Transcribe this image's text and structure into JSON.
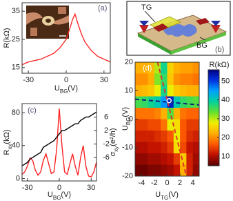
{
  "diagram": {
    "top_gate": "TG",
    "back_gate": "BG",
    "panel_label": "(b)"
  },
  "chart_data": [
    {
      "type": "line",
      "panel_label": "(a)",
      "x_label": {
        "main": "U",
        "sub": "BG",
        "unit": "(V)"
      },
      "y_label": {
        "main": "R",
        "sub": "",
        "unit": "(kΩ)"
      },
      "x": [
        -35,
        -30,
        -25,
        -20,
        -15,
        -10,
        -5,
        0,
        3,
        5,
        7,
        9,
        12,
        15,
        20,
        25,
        30,
        35
      ],
      "series": [
        {
          "color": "#ff2a2a",
          "axis": "y",
          "values": [
            16,
            17,
            17.5,
            18,
            19,
            20,
            22,
            25,
            29,
            32,
            34,
            31,
            27,
            24,
            21,
            19,
            18,
            17
          ]
        }
      ],
      "xlim": [
        -35,
        35
      ],
      "xticks": [
        -30,
        0,
        30
      ],
      "ylim": [
        13,
        38
      ],
      "yticks": [
        15,
        25,
        35
      ]
    },
    {
      "type": "line",
      "panel_label": "(c)",
      "x_label": {
        "main": "U",
        "sub": "BG",
        "unit": "(V)"
      },
      "y_label": {
        "main": "R",
        "sub": "xx",
        "unit": "(kΩ)"
      },
      "y2_label": {
        "main": "σ",
        "sub": "xy",
        "unit": "(e²/h)"
      },
      "x": [
        -35,
        -32.5,
        -30,
        -27.5,
        -25,
        -22.5,
        -20,
        -17.5,
        -15,
        -12.5,
        -10,
        -7.5,
        -5,
        -2.5,
        0,
        2.5,
        5,
        7.5,
        10,
        12.5,
        15,
        17.5,
        20,
        22.5,
        25,
        27.5,
        30,
        32.5,
        35
      ],
      "series": [
        {
          "color": "#ff2020",
          "axis": "y",
          "values": [
            5,
            8,
            15,
            25,
            22,
            10,
            4,
            8,
            22,
            30,
            18,
            6,
            8,
            35,
            85,
            40,
            8,
            5,
            18,
            30,
            15,
            4,
            25,
            40,
            15,
            3,
            2,
            8,
            20
          ]
        },
        {
          "color": "#000000",
          "axis": "y2",
          "values": [
            -8.5,
            -8,
            -7.5,
            -6.5,
            -6,
            -5.5,
            -5,
            -4.5,
            -3,
            -2.5,
            -2,
            -1.5,
            -1,
            0,
            1,
            2,
            2,
            2.5,
            3,
            3.5,
            4,
            4,
            5,
            5.5,
            6,
            6,
            6.5,
            7,
            7.5
          ]
        }
      ],
      "xlim": [
        -35,
        35
      ],
      "xticks": [
        -30,
        0,
        30
      ],
      "ylim": [
        -3,
        91
      ],
      "yticks": [
        0,
        40,
        80
      ],
      "y2lim": [
        -13,
        10
      ],
      "y2ticks": [
        6,
        2,
        -2,
        -6
      ]
    },
    {
      "type": "heatmap",
      "panel_label": "(d)",
      "x_label": {
        "main": "U",
        "sub": "TG",
        "unit": "(V)"
      },
      "y_label": {
        "main": "U",
        "sub": "BG",
        "unit": "(V)"
      },
      "colorbar_label": "R(kΩ)",
      "x": [
        -4.5,
        -3.5,
        -2.5,
        -1.5,
        -0.5,
        0.5,
        1.5,
        2.5,
        3.5,
        4.5
      ],
      "y": [
        18,
        14,
        10,
        6,
        2,
        -2,
        -6,
        -10,
        -14,
        -18
      ],
      "values": [
        [
          22,
          22,
          23,
          30,
          38,
          25,
          22,
          21,
          21,
          20
        ],
        [
          20,
          20,
          22,
          32,
          36,
          24,
          20,
          19,
          19,
          18
        ],
        [
          22,
          23,
          24,
          28,
          38,
          28,
          24,
          23,
          22,
          22
        ],
        [
          35,
          36,
          38,
          40,
          45,
          52,
          40,
          36,
          35,
          34
        ],
        [
          18,
          18,
          18,
          19,
          22,
          34,
          22,
          18,
          17,
          17
        ],
        [
          14,
          14,
          15,
          15,
          18,
          28,
          26,
          16,
          14,
          14
        ],
        [
          12,
          12,
          12,
          13,
          14,
          16,
          28,
          16,
          13,
          12
        ],
        [
          10,
          10,
          11,
          11,
          12,
          14,
          26,
          15,
          11,
          10
        ],
        [
          8,
          8,
          9,
          9,
          10,
          11,
          14,
          24,
          12,
          9
        ],
        [
          6,
          6,
          7,
          7,
          8,
          9,
          11,
          22,
          12,
          8
        ]
      ],
      "colorscale": [
        "#5a0000",
        "#c01000",
        "#ff5a00",
        "#ffb000",
        "#f0f000",
        "#60e030",
        "#00d0a0",
        "#00a0ff",
        "#0030e0",
        "#000080"
      ],
      "clim": [
        5,
        56
      ],
      "cticks": [
        50,
        40,
        30,
        20,
        10
      ],
      "lines": [
        {
          "color": "#e03030",
          "x": [
            -1.5,
            3
          ],
          "y": [
            20,
            -20
          ]
        },
        {
          "color": "#102080",
          "x": [
            -5,
            5
          ],
          "y": [
            7,
            5
          ]
        }
      ],
      "marker": {
        "x": 0.3,
        "y": 6.5
      },
      "xlim": [
        -5,
        5
      ],
      "xticks": [
        -4,
        -2,
        0,
        2,
        4
      ],
      "ylim": [
        -20,
        20
      ],
      "yticks": [
        20,
        10,
        0,
        -10,
        -20
      ]
    }
  ]
}
